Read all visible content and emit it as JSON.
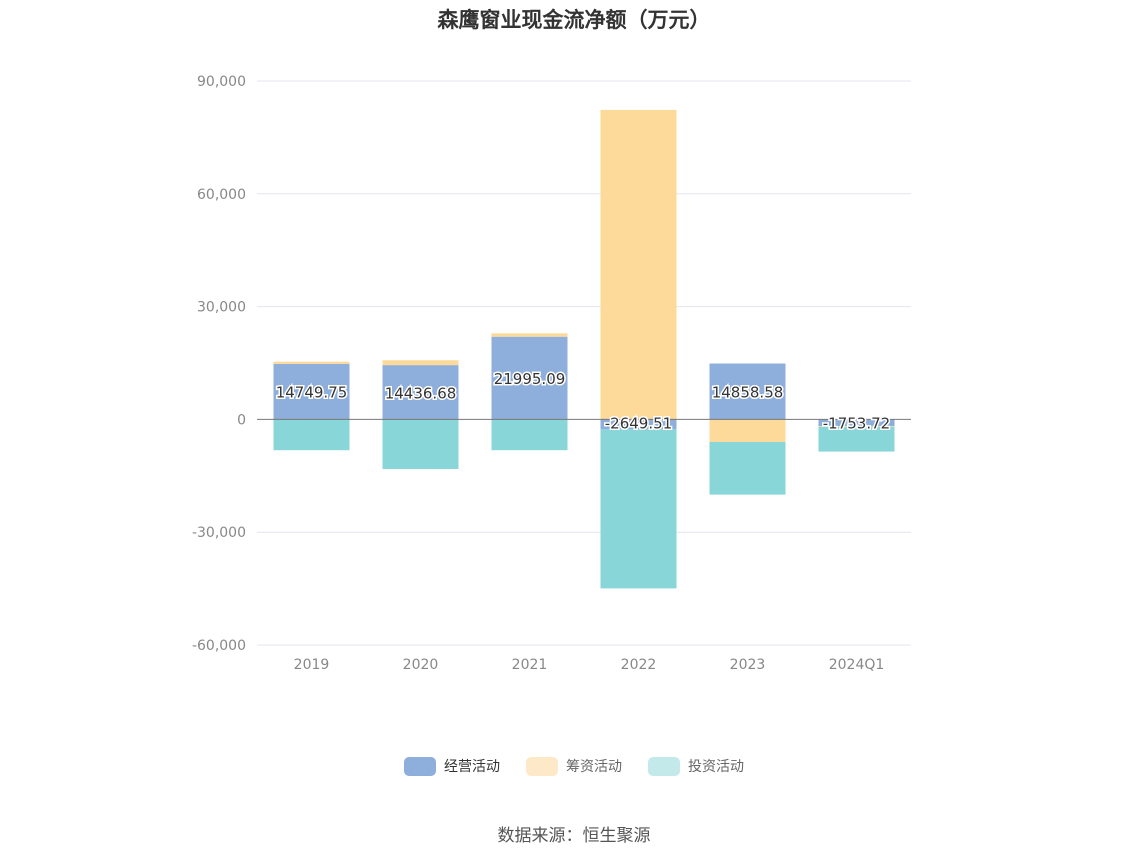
{
  "chart_data": {
    "type": "bar",
    "stacked": true,
    "title": "森鹰窗业现金流净额（万元）",
    "categories": [
      "2019",
      "2020",
      "2021",
      "2022",
      "2023",
      "2024Q1"
    ],
    "ylim": [
      -60000,
      90000
    ],
    "yticks": [
      90000,
      60000,
      30000,
      0,
      -30000,
      -60000
    ],
    "ytick_labels": [
      "90,000",
      "60,000",
      "30,000",
      "0",
      "-30,000",
      "-60,000"
    ],
    "grid": true,
    "legend_position": "bottom",
    "series": [
      {
        "name": "经营活动",
        "color": "#8eaedb",
        "values": [
          14749.75,
          14436.68,
          21995.09,
          -2649.51,
          14858.58,
          -1753.72
        ],
        "data_labels": [
          "14749.75",
          "14436.68",
          "21995.09",
          "-2649.51",
          "14858.58",
          "-1753.72"
        ]
      },
      {
        "name": "筹资活动",
        "color": "#fdd99a",
        "values": [
          600,
          1300,
          900,
          82300,
          -6000,
          -200
        ]
      },
      {
        "name": "投资活动",
        "color": "#89d6d9",
        "values": [
          -8200,
          -13200,
          -8200,
          -42300,
          -14000,
          -6600
        ]
      }
    ]
  },
  "legend": {
    "items": [
      {
        "label": "经营活动",
        "color": "#8eaedb"
      },
      {
        "label": "筹资活动",
        "color": "#fde9c8"
      },
      {
        "label": "投资活动",
        "color": "#c3e9eb"
      }
    ]
  },
  "source": "数据来源：恒生聚源"
}
